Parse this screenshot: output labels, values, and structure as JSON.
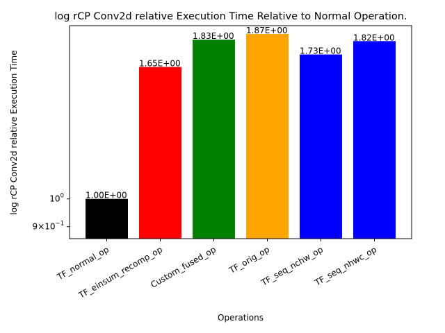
{
  "chart_data": {
    "type": "bar",
    "title": "log rCP Conv2d relative Execution Time Relative to Normal Operation.",
    "xlabel": "Operations",
    "ylabel": "log rCP Conv2d relative Execution Time",
    "yscale": "log",
    "ylim": [
      0.86,
      1.93
    ],
    "categories": [
      "TF_normal_op",
      "TF_einsum_recomp_op",
      "Custom_fused_op",
      "TF_orig_op",
      "TF_seq_nchw_op",
      "TF_seq_nhwc_op"
    ],
    "values": [
      1.0,
      1.65,
      1.83,
      1.87,
      1.73,
      1.82
    ],
    "data_labels": [
      "1.00E+00",
      "1.65E+00",
      "1.83E+00",
      "1.87E+00",
      "1.73E+00",
      "1.82E+00"
    ],
    "bar_colors": [
      "#000000",
      "#ff0000",
      "#008000",
      "#ffa500",
      "#0000ff",
      "#0000ff"
    ],
    "yticks": [
      {
        "value": 1.0,
        "label": "10^0"
      },
      {
        "value": 0.9,
        "label": "9×10^−1"
      }
    ],
    "grid": false,
    "legend": "none"
  }
}
